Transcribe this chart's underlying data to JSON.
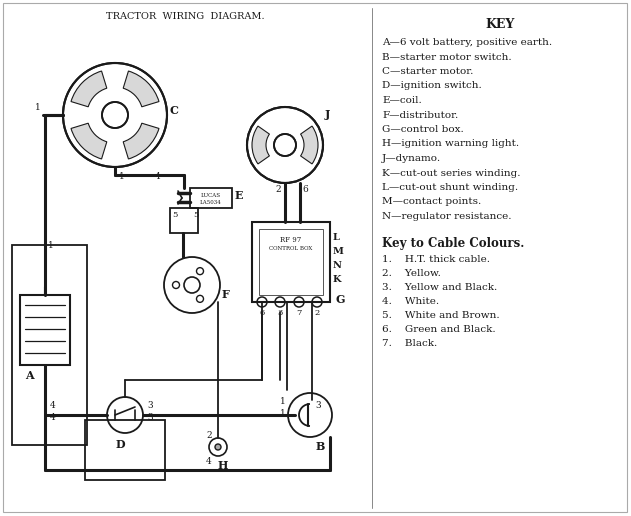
{
  "title": "TRACTOR  WIRING  DIAGRAM.",
  "bg_color": "#ffffff",
  "line_color": "#1a1a1a",
  "key_title": "KEY",
  "key_entries": [
    "A—6 volt battery, positive earth.",
    "B—starter motor switch.",
    "C—starter motor.",
    "D—ignition switch.",
    "E—coil.",
    "F—distributor.",
    "G—control box.",
    "H—ignition warning light.",
    "J—dynamo.",
    "K—cut-out series winding.",
    "L—cut-out shunt winding.",
    "M—contact points.",
    "N—regulator resistance."
  ],
  "cable_title": "Key to Cable Colours.",
  "cable_entries": [
    "1.    H.T. thick cable.",
    "2.    Yellow.",
    "3.    Yellow and Black.",
    "4.    White.",
    "5.    White and Brown.",
    "6.    Green and Black.",
    "7.    Black."
  ],
  "figsize": [
    6.31,
    5.16
  ],
  "dpi": 100
}
